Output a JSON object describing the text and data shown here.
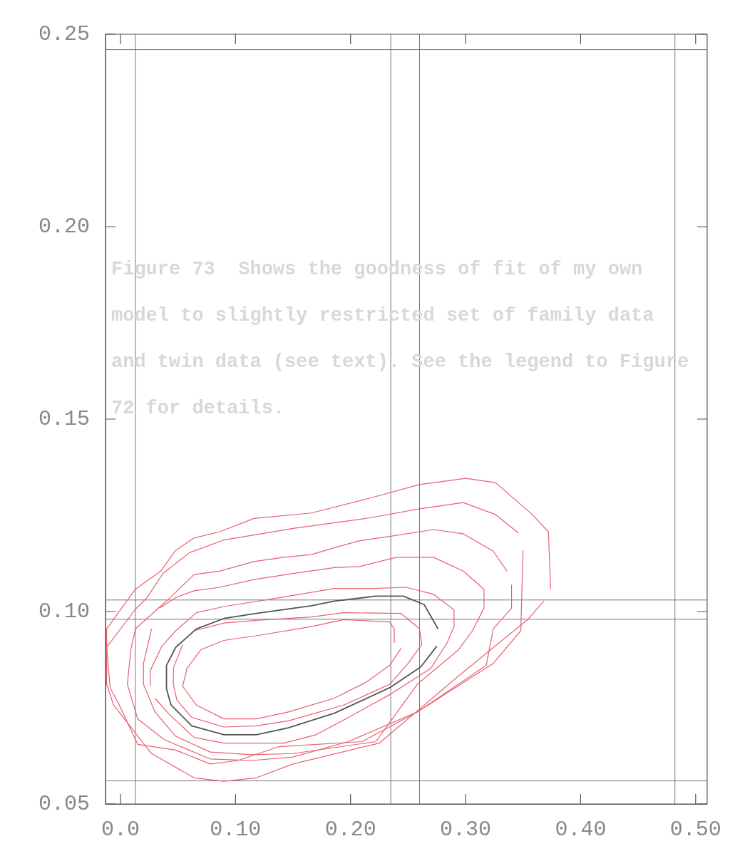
{
  "chart_data": {
    "type": "line",
    "xlim": [
      -0.013,
      0.51
    ],
    "ylim": [
      0.05,
      0.25
    ],
    "xticks": [
      {
        "value": 0,
        "label": "0.0"
      },
      {
        "value": 0.1,
        "label": "0.10"
      },
      {
        "value": 0.2,
        "label": "0.20"
      },
      {
        "value": 0.3,
        "label": "0.30"
      },
      {
        "value": 0.4,
        "label": "0.40"
      },
      {
        "value": 0.5,
        "label": "0.50"
      }
    ],
    "yticks": [
      {
        "value": 0.05,
        "label": "0.05"
      },
      {
        "value": 0.1,
        "label": "0.10"
      },
      {
        "value": 0.15,
        "label": "0.15"
      },
      {
        "value": 0.2,
        "label": "0.20"
      },
      {
        "value": 0.25,
        "label": "0.25"
      }
    ],
    "grid": false,
    "legend": false,
    "marker": "none",
    "line_style": "solid",
    "ref_lines": [
      {
        "axis": "x",
        "value": 0.013,
        "color": "#777777"
      },
      {
        "axis": "x",
        "value": 0.235,
        "color": "#777777"
      },
      {
        "axis": "x",
        "value": 0.26,
        "color": "#777777"
      },
      {
        "axis": "x",
        "value": 0.482,
        "color": "#777777"
      },
      {
        "axis": "y",
        "value": 0.056,
        "color": "#777777"
      },
      {
        "axis": "y",
        "value": 0.098,
        "color": "#777777"
      },
      {
        "axis": "y",
        "value": 0.103,
        "color": "#777777"
      },
      {
        "axis": "y",
        "value": 0.246,
        "color": "#777777"
      }
    ],
    "annotations": [
      "Figure 73  Shows the goodness of fit of my own model to slightly restricted set of family data and twin data (see text). See the legend to Figure 72 for details."
    ],
    "series": [
      {
        "color": "#e8606e",
        "x": [
          0.368,
          0.354,
          0.294,
          0.225,
          0.15,
          0.118,
          0.09,
          0.064,
          0.027,
          -0.006,
          -0.012,
          -0.012,
          0.013,
          0.035,
          0.048,
          0.064,
          0.086,
          0.116,
          0.166,
          0.216,
          0.26,
          0.3,
          0.326,
          0.358,
          0.372,
          0.374
        ],
        "values": [
          0.1027,
          0.0979,
          0.0833,
          0.0658,
          0.0604,
          0.0568,
          0.0559,
          0.0568,
          0.0631,
          0.0757,
          0.0811,
          0.0955,
          0.1058,
          0.1105,
          0.1159,
          0.1191,
          0.1207,
          0.1242,
          0.1256,
          0.1294,
          0.133,
          0.1346,
          0.1335,
          0.1252,
          0.1207,
          0.1058
        ]
      },
      {
        "color": "#e8606e",
        "x": [
          0.35,
          0.348,
          0.324,
          0.258,
          0.21,
          0.138,
          0.102,
          0.078,
          0.048,
          0.015,
          -0.002,
          -0.009,
          -0.012,
          0.013,
          0.023,
          0.037,
          0.06,
          0.09,
          0.15,
          0.216,
          0.26,
          0.298,
          0.326,
          0.346
        ],
        "values": [
          0.1159,
          0.095,
          0.0865,
          0.0739,
          0.0662,
          0.0649,
          0.0613,
          0.0604,
          0.064,
          0.0655,
          0.0763,
          0.0802,
          0.0907,
          0.1006,
          0.1036,
          0.1099,
          0.1153,
          0.1186,
          0.1216,
          0.1243,
          0.1267,
          0.1283,
          0.1252,
          0.1204
        ]
      },
      {
        "color": "#e8606e",
        "x": [
          0.34,
          0.34,
          0.324,
          0.318,
          0.258,
          0.198,
          0.15,
          0.114,
          0.078,
          0.038,
          0.015,
          0.006,
          0.009,
          0.013,
          0.042,
          0.064,
          0.086,
          0.116,
          0.142,
          0.166,
          0.186,
          0.208,
          0.234,
          0.272,
          0.298,
          0.324,
          0.336
        ],
        "values": [
          0.1069,
          0.1009,
          0.0955,
          0.086,
          0.0739,
          0.0662,
          0.0622,
          0.0613,
          0.0617,
          0.0667,
          0.0721,
          0.0811,
          0.0901,
          0.0955,
          0.1033,
          0.1096,
          0.1105,
          0.113,
          0.1141,
          0.1148,
          0.1166,
          0.1184,
          0.1195,
          0.1213,
          0.1202,
          0.1157,
          0.1105
        ]
      },
      {
        "color": "#e8606e",
        "x": [
          0.034,
          0.048,
          0.064,
          0.086,
          0.116,
          0.15,
          0.186,
          0.208,
          0.24,
          0.272,
          0.298,
          0.316,
          0.316,
          0.306,
          0.294,
          0.258,
          0.222,
          0.15,
          0.114,
          0.078,
          0.048,
          0.03,
          0.02,
          0.02,
          0.027
        ],
        "values": [
          0.1009,
          0.1036,
          0.1054,
          0.1063,
          0.1083,
          0.1099,
          0.1114,
          0.1117,
          0.1141,
          0.1141,
          0.1105,
          0.1058,
          0.1009,
          0.095,
          0.0901,
          0.0811,
          0.0662,
          0.0631,
          0.0628,
          0.0635,
          0.0676,
          0.0739,
          0.0811,
          0.0865,
          0.0955
        ]
      },
      {
        "color": "#e8606e",
        "x": [
          0.026,
          0.026,
          0.036,
          0.048,
          0.066,
          0.09,
          0.138,
          0.186,
          0.22,
          0.248,
          0.272,
          0.29,
          0.29,
          0.284,
          0.27,
          0.234,
          0.194,
          0.17,
          0.142,
          0.09,
          0.064,
          0.042,
          0.03
        ],
        "values": [
          0.0806,
          0.0847,
          0.091,
          0.095,
          0.0997,
          0.1013,
          0.1036,
          0.106,
          0.106,
          0.1063,
          0.1045,
          0.1004,
          0.0961,
          0.0919,
          0.0853,
          0.0784,
          0.0718,
          0.068,
          0.0658,
          0.0658,
          0.0673,
          0.0734,
          0.0775
        ]
      },
      {
        "color": "#555555",
        "x": [
          0.275,
          0.261,
          0.234,
          0.186,
          0.146,
          0.118,
          0.09,
          0.062,
          0.044,
          0.04,
          0.04,
          0.048,
          0.066,
          0.09,
          0.118,
          0.166,
          0.186,
          0.222,
          0.246,
          0.264,
          0.276
        ],
        "values": [
          0.091,
          0.0856,
          0.0802,
          0.0736,
          0.0698,
          0.068,
          0.068,
          0.0703,
          0.0757,
          0.0799,
          0.086,
          0.0907,
          0.0955,
          0.0982,
          0.0995,
          0.1015,
          0.1027,
          0.104,
          0.104,
          0.1018,
          0.0955
        ]
      },
      {
        "color": "#e8606e",
        "x": [
          0.064,
          0.09,
          0.118,
          0.166,
          0.194,
          0.244,
          0.26,
          0.262,
          0.25,
          0.234,
          0.194,
          0.146,
          0.118,
          0.09,
          0.062,
          0.049,
          0.046,
          0.046,
          0.054
        ],
        "values": [
          0.095,
          0.097,
          0.0977,
          0.0986,
          0.0997,
          0.0995,
          0.0955,
          0.0914,
          0.0865,
          0.0811,
          0.0757,
          0.0716,
          0.0703,
          0.07,
          0.0725,
          0.077,
          0.0811,
          0.0853,
          0.0914
        ]
      },
      {
        "color": "#e8606e",
        "x": [
          0.244,
          0.234,
          0.214,
          0.186,
          0.146,
          0.118,
          0.09,
          0.066,
          0.054,
          0.058,
          0.07,
          0.09,
          0.118,
          0.166,
          0.194,
          0.234,
          0.238,
          0.238
        ],
        "values": [
          0.0905,
          0.086,
          0.0817,
          0.0775,
          0.0739,
          0.0721,
          0.0721,
          0.0757,
          0.0806,
          0.0853,
          0.0901,
          0.0925,
          0.0937,
          0.0961,
          0.0979,
          0.0973,
          0.0955,
          0.0919
        ]
      }
    ]
  }
}
